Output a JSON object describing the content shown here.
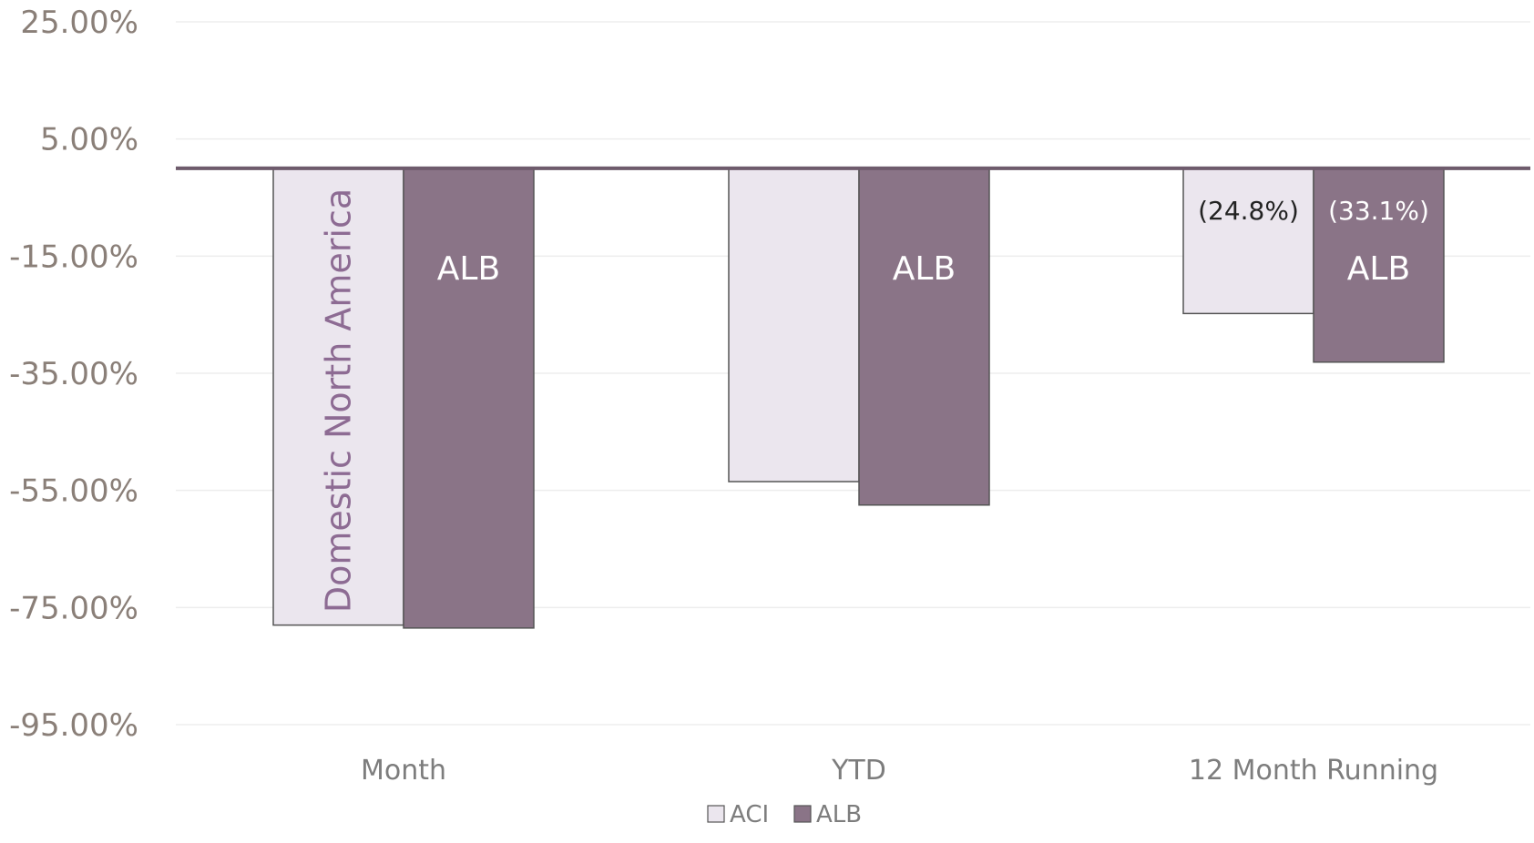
{
  "chart_data": {
    "type": "bar",
    "categories": [
      "Month",
      "YTD",
      "12 Month Running"
    ],
    "series": [
      {
        "name": "ACI",
        "values": [
          -78.0,
          -53.5,
          -24.8
        ],
        "color": "#ebe6ee"
      },
      {
        "name": "ALB",
        "values": [
          -78.5,
          -57.5,
          -33.1
        ],
        "color": "#8a7487"
      }
    ],
    "y_ticks": [
      "25.00%",
      "5.00%",
      "-15.00%",
      "-35.00%",
      "-55.00%",
      "-75.00%",
      "-95.00%"
    ],
    "ylim": [
      -95,
      25
    ],
    "grid": true,
    "legend_position": "bottom-center",
    "bar_inside_labels": [
      "ALB",
      "ALB",
      "ALB"
    ],
    "data_labels": {
      "ACI_12m": "(24.8%)",
      "ALB_12m": "(33.1%)"
    },
    "region_label": "Domestic North America",
    "colors": {
      "baseline": "#6e5b6c",
      "grid": "#ededed",
      "bar_border": "#555555"
    }
  }
}
